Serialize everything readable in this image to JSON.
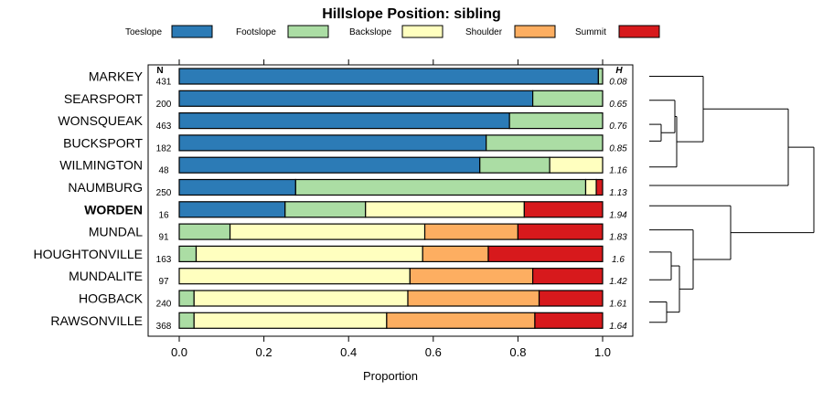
{
  "chart_data": {
    "type": "bar",
    "stacked": true,
    "orientation": "horizontal",
    "title": "Hillslope Position: sibling",
    "xlabel": "Proportion",
    "xlim": [
      0,
      1
    ],
    "xticks": [
      "0.0",
      "0.2",
      "0.4",
      "0.6",
      "0.8",
      "1.0"
    ],
    "legend_position": "top",
    "n_header": "N",
    "h_header": "H",
    "series": [
      {
        "name": "Toeslope",
        "color": "#2c7bb6"
      },
      {
        "name": "Footslope",
        "color": "#abdda4"
      },
      {
        "name": "Backslope",
        "color": "#ffffbf"
      },
      {
        "name": "Shoulder",
        "color": "#fdae61"
      },
      {
        "name": "Summit",
        "color": "#d7191c"
      }
    ],
    "rows": [
      {
        "label": "MARKEY",
        "n": "431",
        "h": "0.08",
        "values": [
          0.99,
          0.01,
          0,
          0,
          0
        ]
      },
      {
        "label": "SEARSPORT",
        "n": "200",
        "h": "0.65",
        "values": [
          0.835,
          0.165,
          0,
          0,
          0
        ]
      },
      {
        "label": "WONSQUEAK",
        "n": "463",
        "h": "0.76",
        "values": [
          0.78,
          0.22,
          0,
          0,
          0
        ]
      },
      {
        "label": "BUCKSPORT",
        "n": "182",
        "h": "0.85",
        "values": [
          0.725,
          0.275,
          0,
          0,
          0
        ]
      },
      {
        "label": "WILMINGTON",
        "n": "48",
        "h": "1.16",
        "values": [
          0.71,
          0.165,
          0.125,
          0,
          0
        ]
      },
      {
        "label": "NAUMBURG",
        "n": "250",
        "h": "1.13",
        "values": [
          0.275,
          0.685,
          0.025,
          0,
          0.015
        ]
      },
      {
        "label": "WORDEN",
        "n": "16",
        "h": "1.94",
        "bold": true,
        "values": [
          0.25,
          0.19,
          0.375,
          0,
          0.185
        ]
      },
      {
        "label": "MUNDAL",
        "n": "91",
        "h": "1.83",
        "values": [
          0,
          0.12,
          0.46,
          0.22,
          0.2
        ]
      },
      {
        "label": "HOUGHTONVILLE",
        "n": "163",
        "h": "1.6",
        "values": [
          0,
          0.04,
          0.535,
          0.155,
          0.27
        ]
      },
      {
        "label": "MUNDALITE",
        "n": "97",
        "h": "1.42",
        "values": [
          0,
          0,
          0.545,
          0.29,
          0.165
        ]
      },
      {
        "label": "HOGBACK",
        "n": "240",
        "h": "1.61",
        "values": [
          0,
          0.035,
          0.505,
          0.31,
          0.15
        ]
      },
      {
        "label": "RAWSONVILLE",
        "n": "368",
        "h": "1.64",
        "values": [
          0,
          0.035,
          0.455,
          0.35,
          0.16
        ]
      }
    ]
  }
}
